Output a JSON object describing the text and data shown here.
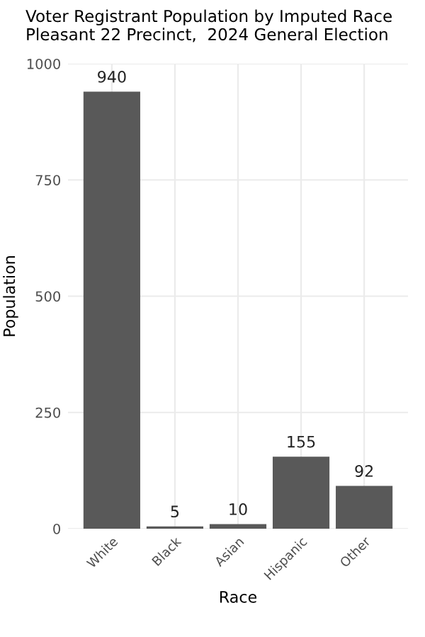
{
  "chart_data": {
    "type": "bar",
    "title": "Voter Registrant Population by Imputed Race\nPleasant 22 Precinct,  2024 General Election",
    "xlabel": "Race",
    "ylabel": "Population",
    "categories": [
      "White",
      "Black",
      "Asian",
      "Hispanic",
      "Other"
    ],
    "values": [
      940,
      5,
      10,
      155,
      92
    ],
    "color": "#595959",
    "data_labels": true,
    "ylim": [
      0,
      1000
    ],
    "yticks": [
      0,
      250,
      500,
      750,
      1000
    ],
    "grid": true
  }
}
